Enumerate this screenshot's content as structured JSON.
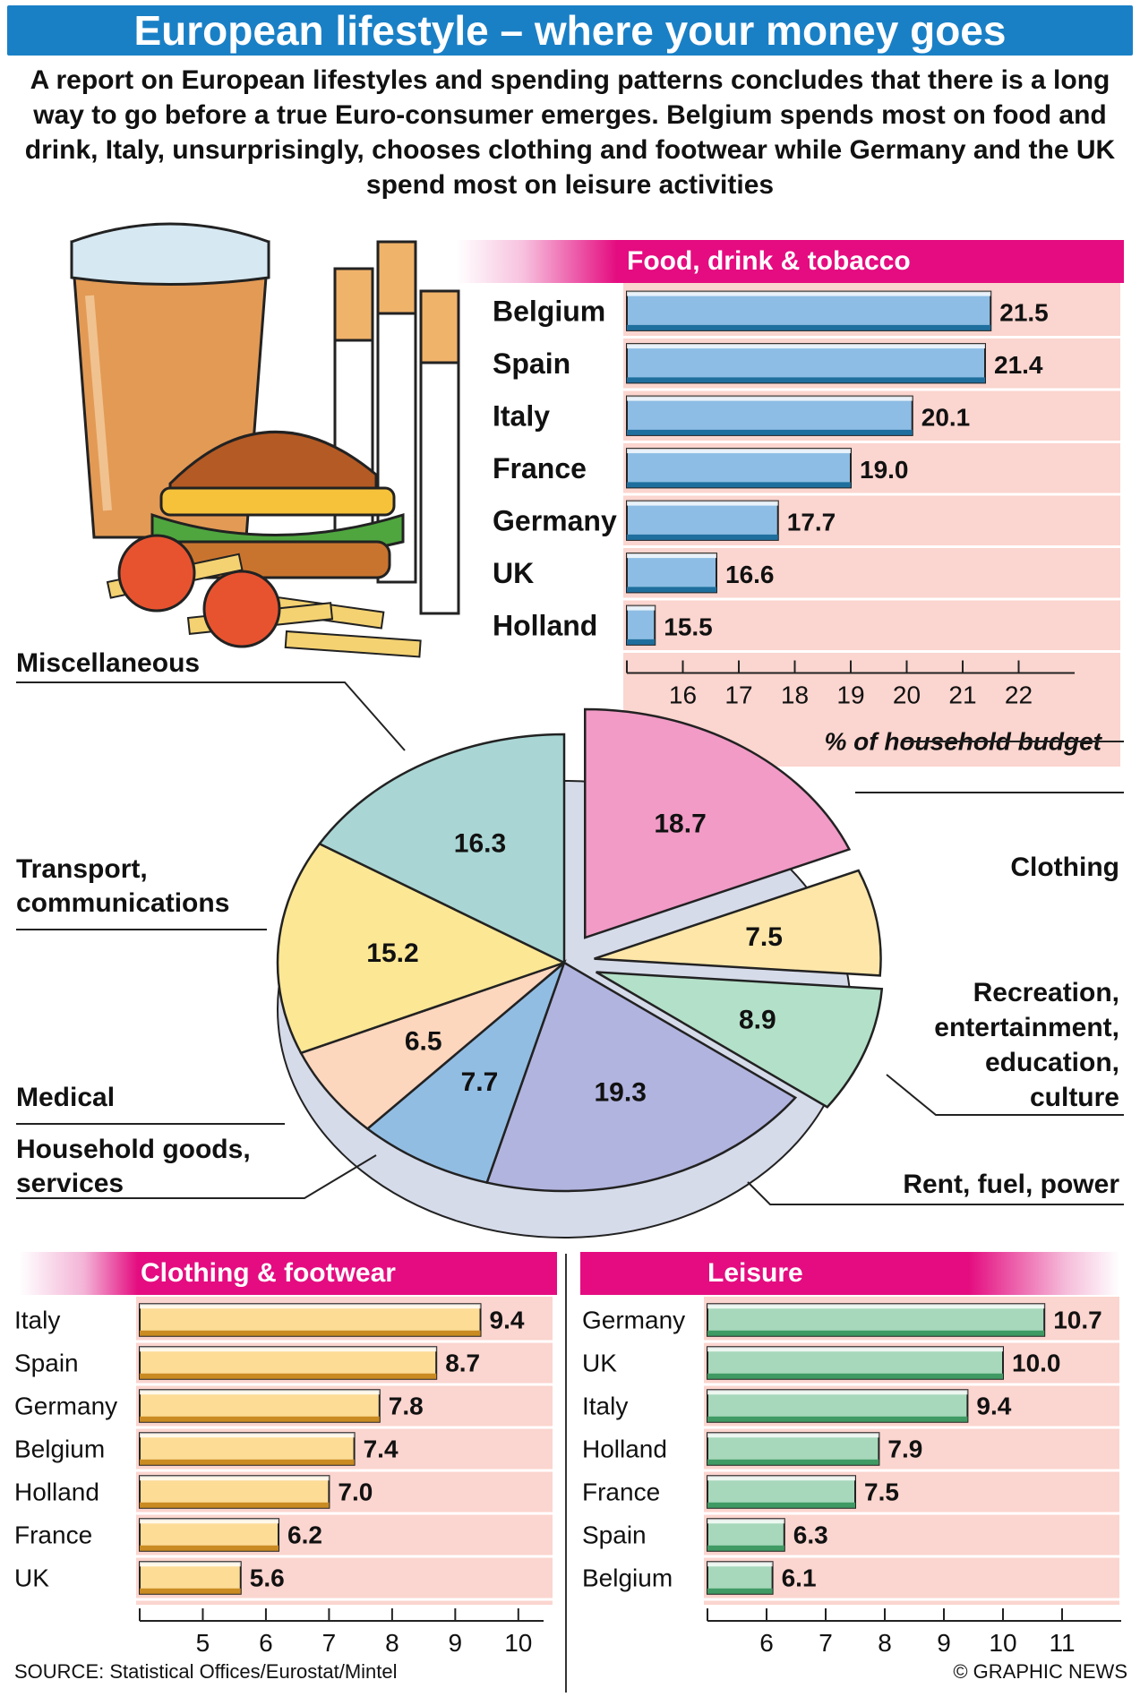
{
  "header": {
    "title": "European lifestyle – where your money goes",
    "intro": "A report on European lifestyles and spending patterns concludes that there is a long way to go before a true Euro-consumer emerges. Belgium spends most on food and drink, Italy, unsurprisingly, chooses clothing and footwear while Germany and the UK spend most on leisure activities"
  },
  "colors": {
    "title_bg": "#1a80c6",
    "section_header": "#e40c80",
    "panel_bg": "#fbd5cf",
    "food_bar": "#8dbde4",
    "clothing_bar": "#fddc96",
    "leisure_bar": "#a7d8bb"
  },
  "illustration": {
    "name": "beer, cigarettes, burger and fries illustration"
  },
  "chart_data": [
    {
      "type": "bar",
      "orientation": "horizontal",
      "title": "Food, drink & tobacco",
      "xlabel": "% of household budget",
      "categories": [
        "Belgium",
        "Spain",
        "Italy",
        "France",
        "Germany",
        "UK",
        "Holland"
      ],
      "values": [
        21.5,
        21.4,
        20.1,
        19.0,
        17.7,
        16.6,
        15.5
      ],
      "value_labels": [
        "21.5",
        "21.4",
        "20.1",
        "19.0",
        "17.7",
        "16.6",
        "15.5"
      ],
      "xlim": [
        15,
        23
      ],
      "ticks": [
        16,
        17,
        18,
        19,
        20,
        21,
        22
      ]
    },
    {
      "type": "pie",
      "slices": [
        {
          "label": "Food, drink & tobacco",
          "value": 18.7,
          "value_label": "18.7",
          "color": "#f19bc6"
        },
        {
          "label": "Clothing",
          "value": 7.5,
          "value_label": "7.5",
          "color": "#fde6a8"
        },
        {
          "label": "Recreation, entertainment, education, culture",
          "value": 8.9,
          "value_label": "8.9",
          "color": "#b3e0c8"
        },
        {
          "label": "Rent, fuel, power",
          "value": 19.3,
          "value_label": "19.3",
          "color": "#b1b4de"
        },
        {
          "label": "Household goods, services",
          "value": 7.7,
          "value_label": "7.7",
          "color": "#92bde3"
        },
        {
          "label": "Medical",
          "value": 6.5,
          "value_label": "6.5",
          "color": "#fcd6bd"
        },
        {
          "label": "Transport, communications",
          "value": 15.2,
          "value_label": "15.2",
          "color": "#fce795"
        },
        {
          "label": "Miscellaneous",
          "value": 16.3,
          "value_label": "16.3",
          "color": "#a9d6d4"
        }
      ],
      "category_labels": {
        "miscellaneous": "Miscellaneous",
        "transport": [
          "Transport,",
          "communications"
        ],
        "medical": "Medical",
        "household": [
          "Household goods,",
          "services"
        ],
        "clothing": "Clothing",
        "recreation": [
          "Recreation,",
          "entertainment,",
          "education,",
          "culture"
        ],
        "rent": "Rent, fuel, power"
      }
    },
    {
      "type": "bar",
      "orientation": "horizontal",
      "title": "Clothing & footwear",
      "categories": [
        "Italy",
        "Spain",
        "Germany",
        "Belgium",
        "Holland",
        "France",
        "UK"
      ],
      "values": [
        9.4,
        8.7,
        7.8,
        7.4,
        7.0,
        6.2,
        5.6
      ],
      "value_labels": [
        "9.4",
        "8.7",
        "7.8",
        "7.4",
        "7.0",
        "6.2",
        "5.6"
      ],
      "xlim": [
        4,
        10.4
      ],
      "ticks": [
        5,
        6,
        7,
        8,
        9,
        10
      ]
    },
    {
      "type": "bar",
      "orientation": "horizontal",
      "title": "Leisure",
      "categories": [
        "Germany",
        "UK",
        "Italy",
        "Holland",
        "France",
        "Spain",
        "Belgium"
      ],
      "values": [
        10.7,
        10.0,
        9.4,
        7.9,
        7.5,
        6.3,
        6.1
      ],
      "value_labels": [
        "10.7",
        "10.0",
        "9.4",
        "7.9",
        "7.5",
        "6.3",
        "6.1"
      ],
      "xlim": [
        5,
        12
      ],
      "ticks": [
        6,
        7,
        8,
        9,
        10,
        11
      ]
    }
  ],
  "footer": {
    "source": "SOURCE: Statistical Offices/Eurostat/Mintel",
    "credit": "© GRAPHIC NEWS"
  }
}
